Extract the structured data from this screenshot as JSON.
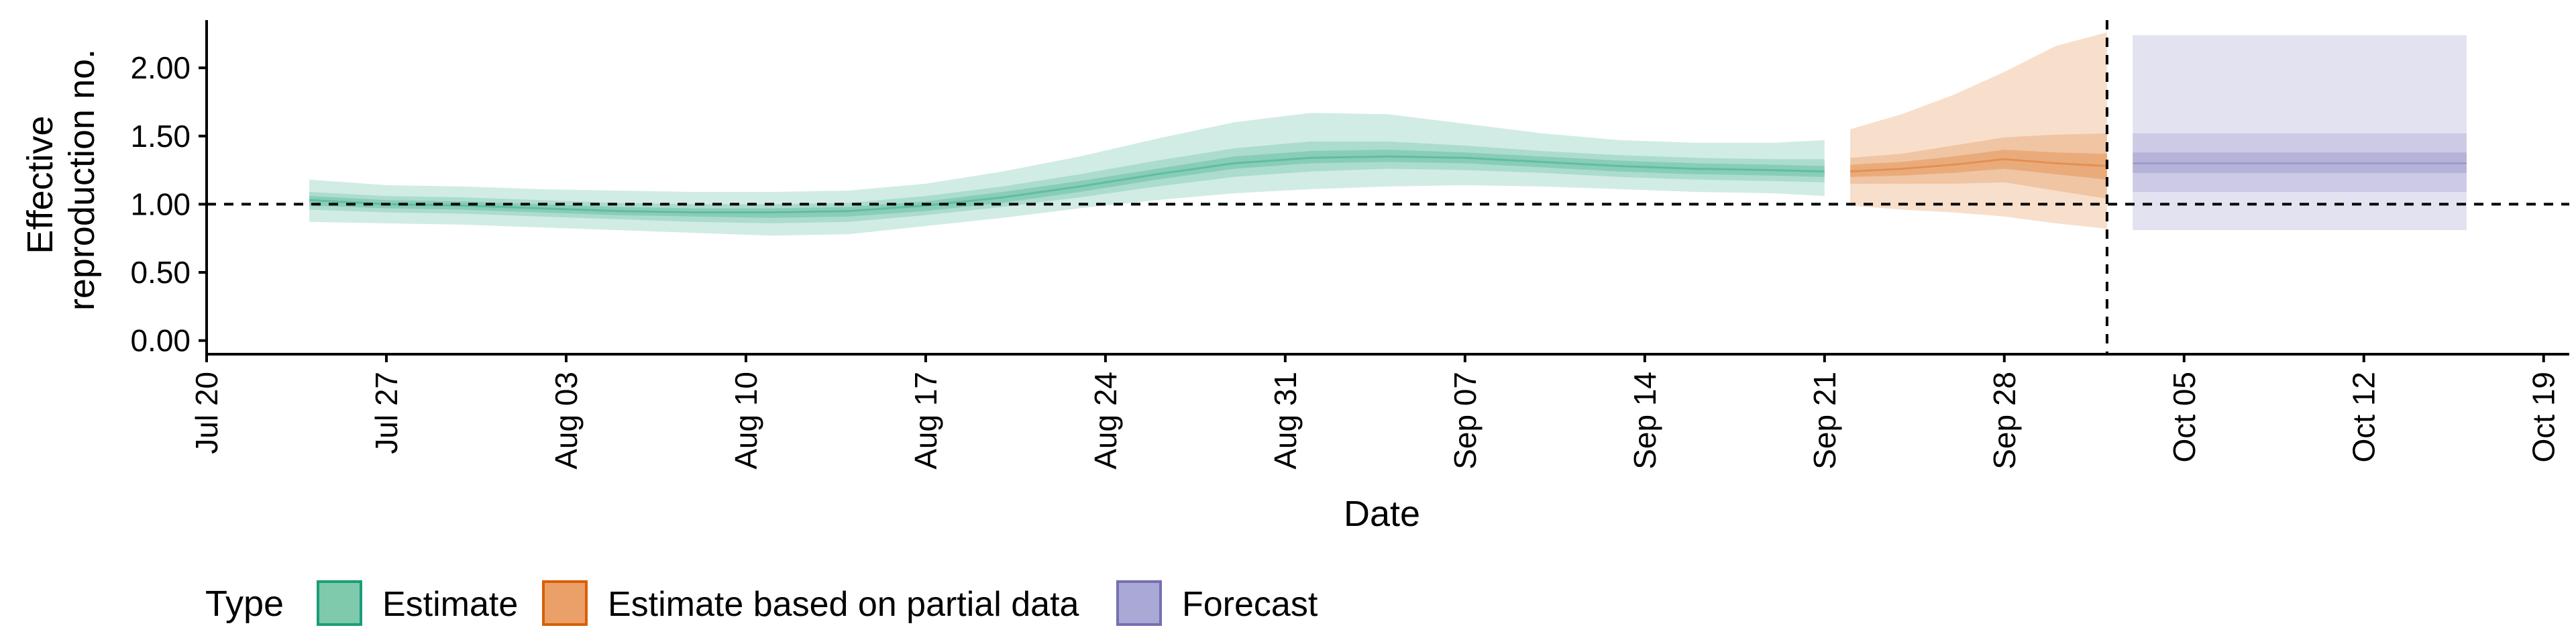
{
  "chart_data": {
    "type": "area",
    "xlabel": "Date",
    "ylabel": [
      "Effective",
      "reproduction no."
    ],
    "xlim": [
      "2020-07-20",
      "2020-10-20"
    ],
    "ylim": [
      -0.1,
      2.35
    ],
    "x_ticks": [
      "2020-07-20",
      "2020-07-27",
      "2020-08-03",
      "2020-08-10",
      "2020-08-17",
      "2020-08-24",
      "2020-08-31",
      "2020-09-07",
      "2020-09-14",
      "2020-09-21",
      "2020-09-28",
      "2020-10-05",
      "2020-10-12",
      "2020-10-19"
    ],
    "x_tick_labels": [
      "Jul 20",
      "Jul 27",
      "Aug 03",
      "Aug 10",
      "Aug 17",
      "Aug 24",
      "Aug 31",
      "Sep 07",
      "Sep 14",
      "Sep 21",
      "Sep 28",
      "Oct 05",
      "Oct 12",
      "Oct 19"
    ],
    "y_ticks": [
      0,
      0.5,
      1.0,
      1.5,
      2.0
    ],
    "y_tick_labels": [
      "0.00",
      "0.50",
      "1.00",
      "1.50",
      "2.00"
    ],
    "reference_hline": 1.0,
    "forecast_boundary_date": "2020-10-02",
    "grid": false,
    "legend": {
      "title": "Type",
      "position": "bottom-left",
      "entries": [
        {
          "label": "Estimate",
          "fill": "#7fc9ad",
          "stroke": "#1b9e77"
        },
        {
          "label": "Estimate based on partial data",
          "fill": "#eaa068",
          "stroke": "#d95f02"
        },
        {
          "label": "Forecast",
          "fill": "#aaa8d4",
          "stroke": "#7570b3"
        }
      ]
    },
    "series": [
      {
        "name": "Estimate",
        "color": "#1b9e77",
        "points": [
          {
            "x": "2020-07-24",
            "median": 1.03,
            "lower_20": 0.99,
            "upper_20": 1.06,
            "lower_50": 0.96,
            "upper_50": 1.09,
            "lower_90": 0.87,
            "upper_90": 1.18
          },
          {
            "x": "2020-07-27",
            "median": 1.0,
            "lower_20": 0.97,
            "upper_20": 1.03,
            "lower_50": 0.94,
            "upper_50": 1.06,
            "lower_90": 0.86,
            "upper_90": 1.14
          },
          {
            "x": "2020-07-30",
            "median": 0.99,
            "lower_20": 0.96,
            "upper_20": 1.02,
            "lower_50": 0.93,
            "upper_50": 1.05,
            "lower_90": 0.85,
            "upper_90": 1.13
          },
          {
            "x": "2020-08-02",
            "median": 0.97,
            "lower_20": 0.94,
            "upper_20": 1.0,
            "lower_50": 0.91,
            "upper_50": 1.03,
            "lower_90": 0.83,
            "upper_90": 1.11
          },
          {
            "x": "2020-08-05",
            "median": 0.95,
            "lower_20": 0.92,
            "upper_20": 0.98,
            "lower_50": 0.89,
            "upper_50": 1.01,
            "lower_90": 0.81,
            "upper_90": 1.1
          },
          {
            "x": "2020-08-08",
            "median": 0.94,
            "lower_20": 0.91,
            "upper_20": 0.97,
            "lower_50": 0.87,
            "upper_50": 1.0,
            "lower_90": 0.79,
            "upper_90": 1.09
          },
          {
            "x": "2020-08-11",
            "median": 0.94,
            "lower_20": 0.9,
            "upper_20": 0.97,
            "lower_50": 0.86,
            "upper_50": 1.0,
            "lower_90": 0.77,
            "upper_90": 1.09
          },
          {
            "x": "2020-08-14",
            "median": 0.95,
            "lower_20": 0.91,
            "upper_20": 0.98,
            "lower_50": 0.87,
            "upper_50": 1.01,
            "lower_90": 0.78,
            "upper_90": 1.1
          },
          {
            "x": "2020-08-17",
            "median": 0.99,
            "lower_20": 0.95,
            "upper_20": 1.02,
            "lower_50": 0.92,
            "upper_50": 1.06,
            "lower_90": 0.84,
            "upper_90": 1.15
          },
          {
            "x": "2020-08-20",
            "median": 1.05,
            "lower_20": 1.01,
            "upper_20": 1.09,
            "lower_50": 0.98,
            "upper_50": 1.13,
            "lower_90": 0.9,
            "upper_90": 1.24
          },
          {
            "x": "2020-08-23",
            "median": 1.13,
            "lower_20": 1.09,
            "upper_20": 1.17,
            "lower_50": 1.05,
            "upper_50": 1.22,
            "lower_90": 0.97,
            "upper_90": 1.35
          },
          {
            "x": "2020-08-26",
            "median": 1.22,
            "lower_20": 1.18,
            "upper_20": 1.26,
            "lower_50": 1.13,
            "upper_50": 1.32,
            "lower_90": 1.03,
            "upper_90": 1.48
          },
          {
            "x": "2020-08-29",
            "median": 1.3,
            "lower_20": 1.26,
            "upper_20": 1.35,
            "lower_50": 1.2,
            "upper_50": 1.41,
            "lower_90": 1.08,
            "upper_90": 1.6
          },
          {
            "x": "2020-09-01",
            "median": 1.34,
            "lower_20": 1.3,
            "upper_20": 1.39,
            "lower_50": 1.24,
            "upper_50": 1.46,
            "lower_90": 1.11,
            "upper_90": 1.67
          },
          {
            "x": "2020-09-04",
            "median": 1.35,
            "lower_20": 1.31,
            "upper_20": 1.4,
            "lower_50": 1.26,
            "upper_50": 1.46,
            "lower_90": 1.13,
            "upper_90": 1.66
          },
          {
            "x": "2020-09-07",
            "median": 1.34,
            "lower_20": 1.3,
            "upper_20": 1.38,
            "lower_50": 1.25,
            "upper_50": 1.43,
            "lower_90": 1.14,
            "upper_90": 1.59
          },
          {
            "x": "2020-09-10",
            "median": 1.31,
            "lower_20": 1.27,
            "upper_20": 1.35,
            "lower_50": 1.23,
            "upper_50": 1.39,
            "lower_90": 1.13,
            "upper_90": 1.52
          },
          {
            "x": "2020-09-13",
            "median": 1.28,
            "lower_20": 1.24,
            "upper_20": 1.32,
            "lower_50": 1.2,
            "upper_50": 1.36,
            "lower_90": 1.11,
            "upper_90": 1.47
          },
          {
            "x": "2020-09-16",
            "median": 1.26,
            "lower_20": 1.22,
            "upper_20": 1.3,
            "lower_50": 1.18,
            "upper_50": 1.34,
            "lower_90": 1.09,
            "upper_90": 1.45
          },
          {
            "x": "2020-09-19",
            "median": 1.25,
            "lower_20": 1.21,
            "upper_20": 1.29,
            "lower_50": 1.17,
            "upper_50": 1.33,
            "lower_90": 1.08,
            "upper_90": 1.45
          },
          {
            "x": "2020-09-21",
            "median": 1.24,
            "lower_20": 1.2,
            "upper_20": 1.28,
            "lower_50": 1.16,
            "upper_50": 1.33,
            "lower_90": 1.06,
            "upper_90": 1.47
          }
        ]
      },
      {
        "name": "Estimate based on partial data",
        "color": "#d95f02",
        "points": [
          {
            "x": "2020-09-22",
            "median": 1.24,
            "lower_20": 1.2,
            "upper_20": 1.29,
            "lower_50": 1.15,
            "upper_50": 1.34,
            "lower_90": 0.99,
            "upper_90": 1.55
          },
          {
            "x": "2020-09-24",
            "median": 1.26,
            "lower_20": 1.21,
            "upper_20": 1.31,
            "lower_50": 1.15,
            "upper_50": 1.37,
            "lower_90": 0.96,
            "upper_90": 1.66
          },
          {
            "x": "2020-09-26",
            "median": 1.29,
            "lower_20": 1.23,
            "upper_20": 1.35,
            "lower_50": 1.15,
            "upper_50": 1.43,
            "lower_90": 0.94,
            "upper_90": 1.8
          },
          {
            "x": "2020-09-28",
            "median": 1.33,
            "lower_20": 1.26,
            "upper_20": 1.4,
            "lower_50": 1.16,
            "upper_50": 1.49,
            "lower_90": 0.91,
            "upper_90": 1.97
          },
          {
            "x": "2020-09-30",
            "median": 1.3,
            "lower_20": 1.22,
            "upper_20": 1.38,
            "lower_50": 1.1,
            "upper_50": 1.51,
            "lower_90": 0.86,
            "upper_90": 2.16
          },
          {
            "x": "2020-10-02",
            "median": 1.28,
            "lower_20": 1.18,
            "upper_20": 1.37,
            "lower_50": 1.04,
            "upper_50": 1.52,
            "lower_90": 0.82,
            "upper_90": 2.26
          }
        ]
      },
      {
        "name": "Forecast",
        "color": "#7570b3",
        "points": [
          {
            "x": "2020-10-03",
            "median": 1.3,
            "lower_20": 1.23,
            "upper_20": 1.38,
            "lower_50": 1.09,
            "upper_50": 1.52,
            "lower_90": 0.81,
            "upper_90": 2.24
          },
          {
            "x": "2020-10-16",
            "median": 1.3,
            "lower_20": 1.23,
            "upper_20": 1.38,
            "lower_50": 1.09,
            "upper_50": 1.52,
            "lower_90": 0.81,
            "upper_90": 2.24
          }
        ]
      }
    ]
  }
}
